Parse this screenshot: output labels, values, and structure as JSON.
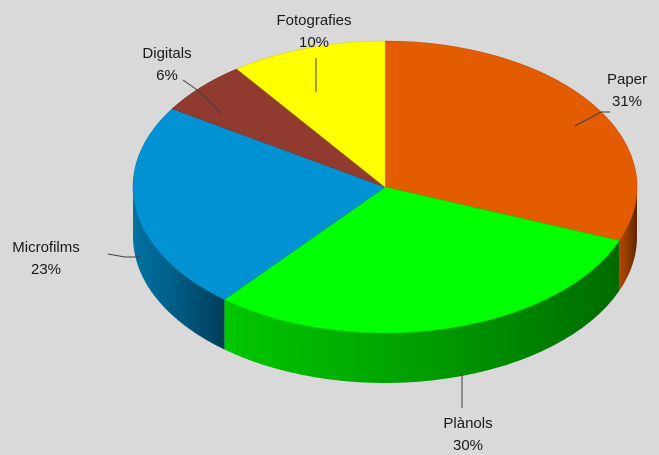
{
  "chart_data": {
    "type": "pie",
    "style": "3d",
    "slices": [
      {
        "name": "Paper",
        "value": 31,
        "label": "31%",
        "color": "#e35c00"
      },
      {
        "name": "Plànols",
        "value": 30,
        "label": "30%",
        "color": "#00ff00"
      },
      {
        "name": "Microfilms",
        "value": 23,
        "label": "23%",
        "color": "#0092d2"
      },
      {
        "name": "Digitals",
        "value": 6,
        "label": "6%",
        "color": "#913a30"
      },
      {
        "name": "Fotografies",
        "value": 10,
        "label": "10%",
        "color": "#ffff00"
      }
    ],
    "legend": "none",
    "labels": "outside-with-leader-lines"
  }
}
